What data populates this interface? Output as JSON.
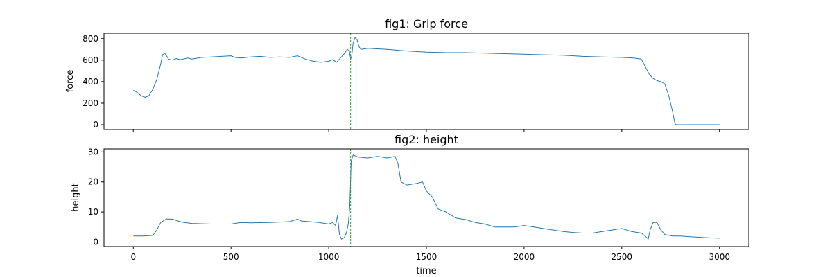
{
  "chart_data": [
    {
      "type": "line",
      "title": "fig1: Grip force",
      "xlabel": "",
      "ylabel": "force",
      "xlim": [
        -150,
        3150
      ],
      "ylim": [
        -45,
        850
      ],
      "xticks": [
        0,
        500,
        1000,
        1500,
        2000,
        2500,
        3000
      ],
      "xtick_labels_visible": false,
      "yticks": [
        0,
        200,
        400,
        600,
        800
      ],
      "series": [
        {
          "name": "force",
          "color": "#1f77b4",
          "points": [
            [
              0,
              320
            ],
            [
              20,
              300
            ],
            [
              40,
              270
            ],
            [
              60,
              255
            ],
            [
              80,
              270
            ],
            [
              100,
              330
            ],
            [
              120,
              420
            ],
            [
              140,
              560
            ],
            [
              150,
              650
            ],
            [
              160,
              665
            ],
            [
              170,
              640
            ],
            [
              180,
              610
            ],
            [
              200,
              600
            ],
            [
              220,
              615
            ],
            [
              240,
              605
            ],
            [
              280,
              620
            ],
            [
              300,
              610
            ],
            [
              350,
              625
            ],
            [
              400,
              630
            ],
            [
              450,
              635
            ],
            [
              500,
              640
            ],
            [
              520,
              625
            ],
            [
              550,
              620
            ],
            [
              600,
              630
            ],
            [
              650,
              635
            ],
            [
              700,
              625
            ],
            [
              750,
              630
            ],
            [
              800,
              625
            ],
            [
              840,
              640
            ],
            [
              880,
              610
            ],
            [
              900,
              600
            ],
            [
              920,
              590
            ],
            [
              960,
              580
            ],
            [
              1000,
              590
            ],
            [
              1020,
              605
            ],
            [
              1040,
              580
            ],
            [
              1060,
              620
            ],
            [
              1080,
              660
            ],
            [
              1095,
              700
            ],
            [
              1105,
              690
            ],
            [
              1112,
              610
            ],
            [
              1118,
              640
            ],
            [
              1125,
              760
            ],
            [
              1135,
              810
            ],
            [
              1145,
              790
            ],
            [
              1155,
              725
            ],
            [
              1165,
              700
            ],
            [
              1200,
              710
            ],
            [
              1250,
              705
            ],
            [
              1300,
              700
            ],
            [
              1400,
              685
            ],
            [
              1500,
              675
            ],
            [
              1600,
              670
            ],
            [
              1700,
              670
            ],
            [
              1800,
              665
            ],
            [
              1900,
              660
            ],
            [
              2000,
              655
            ],
            [
              2100,
              650
            ],
            [
              2200,
              645
            ],
            [
              2300,
              635
            ],
            [
              2400,
              630
            ],
            [
              2500,
              625
            ],
            [
              2560,
              620
            ],
            [
              2600,
              610
            ],
            [
              2620,
              540
            ],
            [
              2640,
              470
            ],
            [
              2660,
              430
            ],
            [
              2680,
              410
            ],
            [
              2700,
              400
            ],
            [
              2720,
              380
            ],
            [
              2740,
              270
            ],
            [
              2760,
              120
            ],
            [
              2772,
              10
            ],
            [
              2780,
              0
            ],
            [
              2900,
              0
            ],
            [
              3000,
              0
            ]
          ]
        }
      ],
      "vlines": [
        {
          "x": 1112,
          "color": "#2ca02c"
        },
        {
          "x": 1140,
          "color": "#800080"
        }
      ]
    },
    {
      "type": "line",
      "title": "fig2: height",
      "xlabel": "time",
      "ylabel": "height",
      "xlim": [
        -150,
        3150
      ],
      "ylim": [
        -1.5,
        31
      ],
      "xticks": [
        0,
        500,
        1000,
        1500,
        2000,
        2500,
        3000
      ],
      "xtick_labels_visible": true,
      "yticks": [
        0,
        10,
        20,
        30
      ],
      "series": [
        {
          "name": "height",
          "color": "#1f77b4",
          "points": [
            [
              0,
              2
            ],
            [
              50,
              2
            ],
            [
              100,
              2.2
            ],
            [
              120,
              4
            ],
            [
              140,
              6.5
            ],
            [
              170,
              7.7
            ],
            [
              200,
              7.6
            ],
            [
              250,
              6.6
            ],
            [
              300,
              6.2
            ],
            [
              400,
              6
            ],
            [
              500,
              6
            ],
            [
              550,
              6.5
            ],
            [
              600,
              6.4
            ],
            [
              700,
              6.5
            ],
            [
              800,
              6.8
            ],
            [
              840,
              7.6
            ],
            [
              860,
              7
            ],
            [
              900,
              6.8
            ],
            [
              950,
              6.5
            ],
            [
              1000,
              6
            ],
            [
              1020,
              6.5
            ],
            [
              1035,
              5.5
            ],
            [
              1045,
              8.8
            ],
            [
              1055,
              2.5
            ],
            [
              1065,
              1
            ],
            [
              1080,
              1.5
            ],
            [
              1090,
              3
            ],
            [
              1100,
              6
            ],
            [
              1108,
              12
            ],
            [
              1115,
              27
            ],
            [
              1125,
              29
            ],
            [
              1150,
              28.3
            ],
            [
              1200,
              28
            ],
            [
              1250,
              28.5
            ],
            [
              1300,
              28
            ],
            [
              1340,
              28.5
            ],
            [
              1355,
              26
            ],
            [
              1370,
              20
            ],
            [
              1400,
              19
            ],
            [
              1450,
              19.5
            ],
            [
              1480,
              20
            ],
            [
              1500,
              17
            ],
            [
              1530,
              15
            ],
            [
              1560,
              11
            ],
            [
              1600,
              10
            ],
            [
              1650,
              8
            ],
            [
              1700,
              7.5
            ],
            [
              1750,
              6.5
            ],
            [
              1800,
              6
            ],
            [
              1850,
              5
            ],
            [
              1900,
              5
            ],
            [
              1950,
              5
            ],
            [
              2000,
              5.5
            ],
            [
              2050,
              5
            ],
            [
              2100,
              4.5
            ],
            [
              2150,
              4
            ],
            [
              2200,
              3.5
            ],
            [
              2250,
              3.2
            ],
            [
              2300,
              3
            ],
            [
              2350,
              3
            ],
            [
              2400,
              3.5
            ],
            [
              2450,
              4
            ],
            [
              2500,
              4.5
            ],
            [
              2550,
              3.5
            ],
            [
              2600,
              3
            ],
            [
              2620,
              2
            ],
            [
              2635,
              1
            ],
            [
              2645,
              4
            ],
            [
              2660,
              6.5
            ],
            [
              2680,
              6.5
            ],
            [
              2700,
              4
            ],
            [
              2720,
              2.5
            ],
            [
              2760,
              2
            ],
            [
              2800,
              2
            ],
            [
              2850,
              1.8
            ],
            [
              2900,
              1.6
            ],
            [
              2950,
              1.4
            ],
            [
              3000,
              1.3
            ]
          ]
        }
      ],
      "vlines": [
        {
          "x": 1112,
          "color": "#2ca02c"
        }
      ]
    }
  ]
}
